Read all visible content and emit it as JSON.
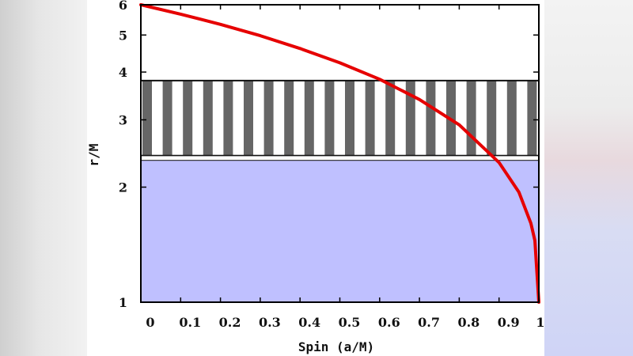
{
  "chart_data": {
    "type": "area",
    "xlabel": "Spin (a/M)",
    "ylabel": "r/M",
    "xlim": [
      0,
      1
    ],
    "ylim": [
      1,
      6
    ],
    "y_scale": "log",
    "x_ticks": [
      "0",
      "0.1",
      "0.2",
      "0.3",
      "0.4",
      "0.5",
      "0.6",
      "0.7",
      "0.8",
      "0.9",
      "1"
    ],
    "y_ticks": [
      "1",
      "2",
      "3",
      "4",
      "5",
      "6"
    ],
    "bands": [
      {
        "kind": "filled",
        "color": "#bfc0ff",
        "y_range": [
          1,
          2.35
        ]
      },
      {
        "kind": "striped",
        "color": "#666666",
        "y_range": [
          2.42,
          3.8
        ]
      }
    ],
    "series": [
      {
        "color": "#e60000",
        "x": [
          0,
          0.1,
          0.2,
          0.3,
          0.4,
          0.5,
          0.6,
          0.7,
          0.8,
          0.9,
          0.95,
          0.98,
          0.99,
          1.0
        ],
        "y": [
          6.0,
          5.67,
          5.33,
          4.98,
          4.61,
          4.23,
          3.83,
          3.39,
          2.91,
          2.32,
          1.94,
          1.61,
          1.45,
          1.0
        ]
      }
    ]
  }
}
